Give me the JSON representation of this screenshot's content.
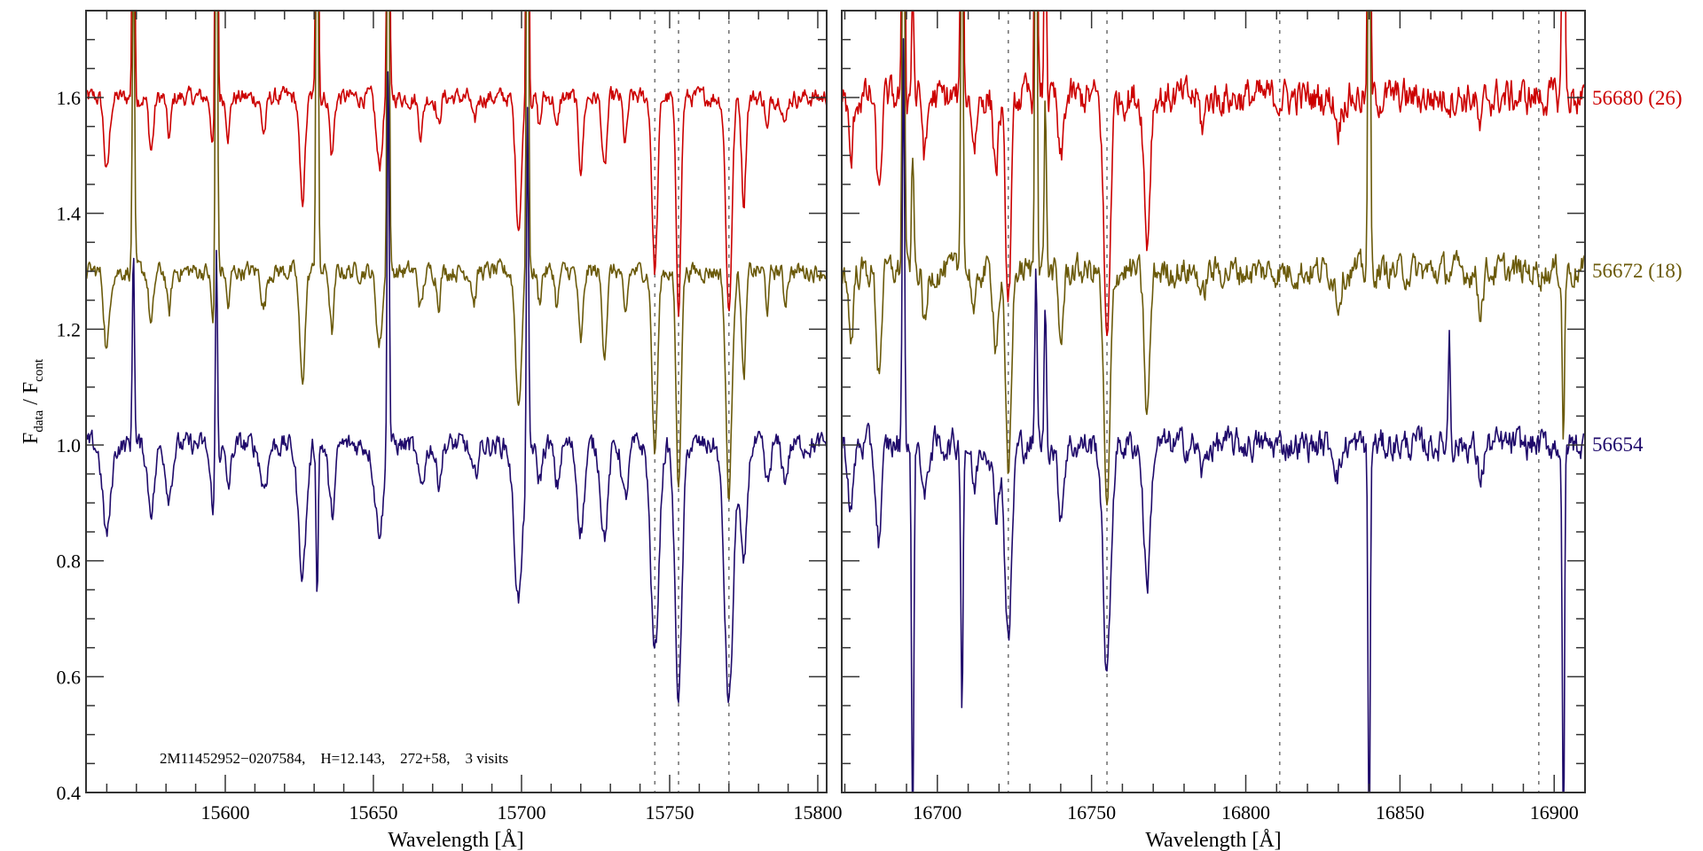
{
  "chart_data": {
    "type": "line",
    "ylabel": {
      "main": "F",
      "sub1": "data",
      "sep": " / F",
      "sub2": "cont"
    },
    "ylim": [
      0.4,
      1.75
    ],
    "yticks": [
      0.4,
      0.6,
      0.8,
      1.0,
      1.2,
      1.4,
      1.6
    ],
    "ytick_labels": [
      "0.4",
      "0.6",
      "0.8",
      "1.0",
      "1.2",
      "1.4",
      "1.6"
    ],
    "annotation": "2M11452952−0207584,    H=12.143,    272+58,    3 visits",
    "series_meta": [
      {
        "name": "56680 (26)",
        "color": "#cc0000",
        "offset": 0.6
      },
      {
        "name": "56672 (18)",
        "color": "#6b5a0a",
        "offset": 0.3
      },
      {
        "name": "56654",
        "color": "#1f0a6b",
        "offset": 0.0
      }
    ],
    "panels": [
      {
        "xlabel": "Wavelength [Å]",
        "xlim": [
          15553,
          15803
        ],
        "xticks": [
          15600,
          15650,
          15700,
          15750,
          15800
        ],
        "xtick_labels": [
          "15600",
          "15650",
          "15700",
          "15750",
          "15800"
        ],
        "reference_lines": [
          15745,
          15753,
          15770
        ],
        "continuum": 1.0,
        "noise": [
          0.018,
          0.018,
          0.022
        ],
        "absorption_lines": [
          {
            "w": 15560,
            "d": 0.13,
            "s": 0.9
          },
          {
            "w": 15575,
            "d": 0.09,
            "s": 0.8
          },
          {
            "w": 15581,
            "d": 0.07,
            "s": 0.7
          },
          {
            "w": 15596,
            "d": 0.09,
            "s": 0.7
          },
          {
            "w": 15601,
            "d": 0.06,
            "s": 0.6
          },
          {
            "w": 15613,
            "d": 0.06,
            "s": 0.8
          },
          {
            "w": 15626,
            "d": 0.18,
            "s": 0.9
          },
          {
            "w": 15636,
            "d": 0.1,
            "s": 0.7
          },
          {
            "w": 15652,
            "d": 0.12,
            "s": 1.0
          },
          {
            "w": 15666,
            "d": 0.06,
            "s": 0.8
          },
          {
            "w": 15672,
            "d": 0.05,
            "s": 0.6
          },
          {
            "w": 15684,
            "d": 0.05,
            "s": 0.7
          },
          {
            "w": 15699,
            "d": 0.22,
            "s": 1.0
          },
          {
            "w": 15706,
            "d": 0.05,
            "s": 0.6
          },
          {
            "w": 15712,
            "d": 0.06,
            "s": 0.6
          },
          {
            "w": 15720,
            "d": 0.12,
            "s": 0.8
          },
          {
            "w": 15728,
            "d": 0.13,
            "s": 0.8
          },
          {
            "w": 15735,
            "d": 0.08,
            "s": 0.7
          },
          {
            "w": 15745,
            "d": 0.3,
            "s": 0.9
          },
          {
            "w": 15753,
            "d": 0.36,
            "s": 0.8
          },
          {
            "w": 15770,
            "d": 0.37,
            "s": 1.0
          },
          {
            "w": 15775,
            "d": 0.18,
            "s": 0.7
          },
          {
            "w": 15783,
            "d": 0.06,
            "s": 0.6
          },
          {
            "w": 15789,
            "d": 0.05,
            "s": 0.6
          }
        ],
        "depth_scale": [
          1.0,
          1.05,
          1.2
        ],
        "width_scale": [
          1.0,
          1.0,
          1.5
        ],
        "sky_spikes": [
          {
            "w": 15569,
            "a": [
              0.9,
              0.6,
              0.35
            ]
          },
          {
            "w": 15597,
            "a": [
              1.2,
              0.9,
              0.4
            ]
          },
          {
            "w": 15631,
            "a": [
              1.2,
              1.0,
              -0.25
            ]
          },
          {
            "w": 15655,
            "a": [
              1.2,
              1.0,
              0.7
            ]
          },
          {
            "w": 15702,
            "a": [
              1.2,
              1.0,
              0.6
            ]
          }
        ]
      },
      {
        "xlabel": "Wavelength [Å]",
        "xlim": [
          16669,
          16910
        ],
        "xticks": [
          16700,
          16750,
          16800,
          16850,
          16900
        ],
        "xtick_labels": [
          "16700",
          "16750",
          "16800",
          "16850",
          "16900"
        ],
        "reference_lines": [
          16723,
          16755,
          16811,
          16895
        ],
        "continuum": 1.0,
        "noise": [
          0.035,
          0.03,
          0.03
        ],
        "absorption_lines": [
          {
            "w": 16672,
            "d": 0.12,
            "s": 0.7
          },
          {
            "w": 16681,
            "d": 0.17,
            "s": 0.8
          },
          {
            "w": 16696,
            "d": 0.1,
            "s": 0.7
          },
          {
            "w": 16712,
            "d": 0.08,
            "s": 0.7
          },
          {
            "w": 16719,
            "d": 0.12,
            "s": 0.8
          },
          {
            "w": 16723,
            "d": 0.36,
            "s": 0.9
          },
          {
            "w": 16740,
            "d": 0.12,
            "s": 0.8
          },
          {
            "w": 16755,
            "d": 0.42,
            "s": 1.0
          },
          {
            "w": 16768,
            "d": 0.25,
            "s": 0.9
          },
          {
            "w": 16786,
            "d": 0.05,
            "s": 0.8
          },
          {
            "w": 16830,
            "d": 0.05,
            "s": 0.8
          },
          {
            "w": 16876,
            "d": 0.06,
            "s": 0.8
          }
        ],
        "depth_scale": [
          1.0,
          1.0,
          0.95
        ],
        "width_scale": [
          1.0,
          1.0,
          1.2
        ],
        "sky_spikes": [
          {
            "w": 16689,
            "a": [
              1.2,
              1.0,
              0.7
            ]
          },
          {
            "w": 16692,
            "a": [
              0.2,
              0.2,
              -0.7
            ]
          },
          {
            "w": 16708,
            "a": [
              1.0,
              0.8,
              -0.45
            ]
          },
          {
            "w": 16732,
            "a": [
              1.2,
              1.0,
              0.3
            ]
          },
          {
            "w": 16735,
            "a": [
              0.4,
              0.3,
              0.25
            ]
          },
          {
            "w": 16840,
            "a": [
              1.2,
              1.0,
              -0.7
            ]
          },
          {
            "w": 16866,
            "a": [
              0.0,
              0.0,
              0.2
            ]
          },
          {
            "w": 16903,
            "a": [
              1.2,
              -0.3,
              -0.7
            ]
          }
        ]
      }
    ]
  }
}
